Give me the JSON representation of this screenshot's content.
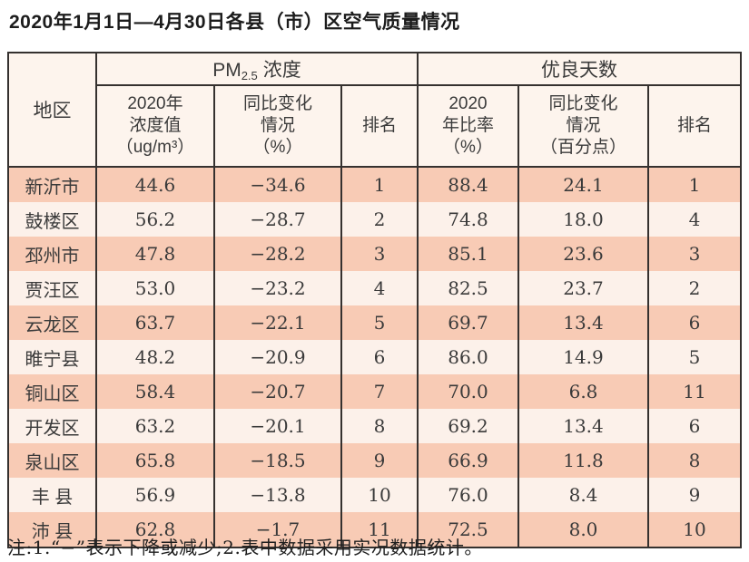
{
  "page_title": "2020年1月1日—4月30日各县（市）区空气质量情况",
  "table": {
    "region_header": "地区",
    "pm_group": {
      "pm": "PM",
      "sub": "2.5",
      "suffix": "浓度"
    },
    "good_days_group": "优良天数",
    "sub_headers": {
      "pm_value": "2020年\n浓度值\n（ug/m³）",
      "pm_change": "同比变化\n情况\n（%）",
      "pm_rank": "排名",
      "good_rate": "2020\n年比率\n（%）",
      "good_change": "同比变化\n情况\n（百分点）",
      "good_rank": "排名"
    },
    "rows": [
      {
        "region": "新沂市",
        "pm_value": "44.6",
        "pm_change": "−34.6",
        "pm_rank": "1",
        "good_rate": "88.4",
        "good_change": "24.1",
        "good_rank": "1"
      },
      {
        "region": "鼓楼区",
        "pm_value": "56.2",
        "pm_change": "−28.7",
        "pm_rank": "2",
        "good_rate": "74.8",
        "good_change": "18.0",
        "good_rank": "4"
      },
      {
        "region": "邳州市",
        "pm_value": "47.8",
        "pm_change": "−28.2",
        "pm_rank": "3",
        "good_rate": "85.1",
        "good_change": "23.6",
        "good_rank": "3"
      },
      {
        "region": "贾汪区",
        "pm_value": "53.0",
        "pm_change": "−23.2",
        "pm_rank": "4",
        "good_rate": "82.5",
        "good_change": "23.7",
        "good_rank": "2"
      },
      {
        "region": "云龙区",
        "pm_value": "63.7",
        "pm_change": "−22.1",
        "pm_rank": "5",
        "good_rate": "69.7",
        "good_change": "13.4",
        "good_rank": "6"
      },
      {
        "region": "睢宁县",
        "pm_value": "48.2",
        "pm_change": "−20.9",
        "pm_rank": "6",
        "good_rate": "86.0",
        "good_change": "14.9",
        "good_rank": "5"
      },
      {
        "region": "铜山区",
        "pm_value": "58.4",
        "pm_change": "−20.7",
        "pm_rank": "7",
        "good_rate": "70.0",
        "good_change": "6.8",
        "good_rank": "11"
      },
      {
        "region": "开发区",
        "pm_value": "63.2",
        "pm_change": "−20.1",
        "pm_rank": "8",
        "good_rate": "69.2",
        "good_change": "13.4",
        "good_rank": "6"
      },
      {
        "region": "泉山区",
        "pm_value": "65.8",
        "pm_change": "−18.5",
        "pm_rank": "9",
        "good_rate": "66.9",
        "good_change": "11.8",
        "good_rank": "8"
      },
      {
        "region": "丰 县",
        "pm_value": "56.9",
        "pm_change": "−13.8",
        "pm_rank": "10",
        "good_rate": "76.0",
        "good_change": "8.4",
        "good_rank": "9"
      },
      {
        "region": "沛 县",
        "pm_value": "62.8",
        "pm_change": "−1.7",
        "pm_rank": "11",
        "good_rate": "72.5",
        "good_change": "8.0",
        "good_rank": "10"
      }
    ]
  },
  "footnote": "注:1.“−”表示下降或减少;2.表中数据采用实况数据统计。",
  "colors": {
    "row_odd": "#f8cbb5",
    "row_even": "#fcf1ea",
    "header_bg": "#fdf4ed",
    "border": "#35312f"
  }
}
